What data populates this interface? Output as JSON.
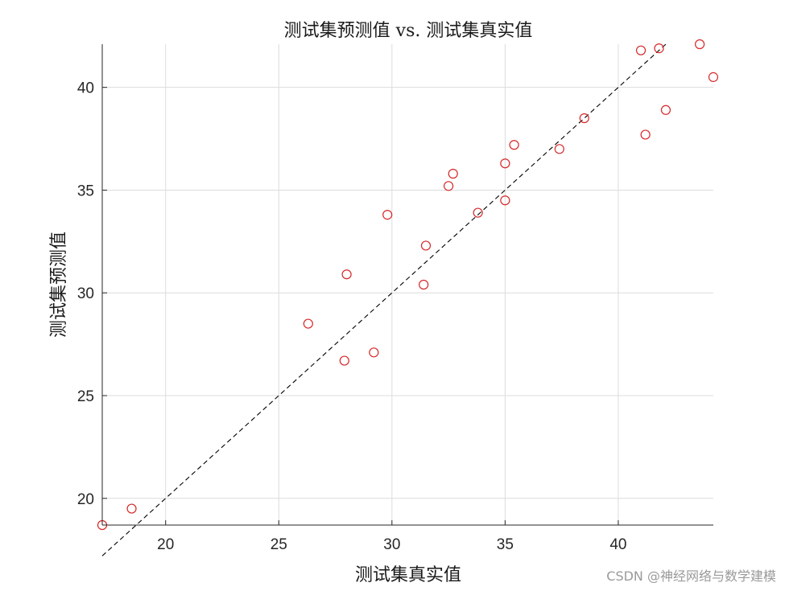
{
  "chart_data": {
    "type": "scatter",
    "title": "测试集预测值 vs. 测试集真实值",
    "xlabel": "测试集真实值",
    "ylabel": "测试集预测值",
    "xlim": [
      17.2,
      44.2
    ],
    "ylim": [
      18.7,
      42.1
    ],
    "xticks": [
      20,
      25,
      30,
      35,
      40
    ],
    "yticks": [
      20,
      25,
      30,
      35,
      40
    ],
    "grid": true,
    "marker": "open-circle",
    "marker_color": "#d62728",
    "reference_line": {
      "style": "dashed",
      "color": "#000000",
      "points": [
        [
          17.2,
          17.2
        ],
        [
          42.1,
          42.1
        ]
      ]
    },
    "points": [
      {
        "x": 17.2,
        "y": 18.7
      },
      {
        "x": 18.5,
        "y": 19.5
      },
      {
        "x": 26.3,
        "y": 28.5
      },
      {
        "x": 27.9,
        "y": 26.7
      },
      {
        "x": 28.0,
        "y": 30.9
      },
      {
        "x": 29.2,
        "y": 27.1
      },
      {
        "x": 29.8,
        "y": 33.8
      },
      {
        "x": 31.4,
        "y": 30.4
      },
      {
        "x": 31.5,
        "y": 32.3
      },
      {
        "x": 32.5,
        "y": 35.2
      },
      {
        "x": 32.7,
        "y": 35.8
      },
      {
        "x": 33.8,
        "y": 33.9
      },
      {
        "x": 35.0,
        "y": 34.5
      },
      {
        "x": 35.0,
        "y": 36.3
      },
      {
        "x": 35.4,
        "y": 37.2
      },
      {
        "x": 37.4,
        "y": 37.0
      },
      {
        "x": 38.5,
        "y": 38.5
      },
      {
        "x": 41.0,
        "y": 41.8
      },
      {
        "x": 41.2,
        "y": 37.7
      },
      {
        "x": 41.8,
        "y": 41.9
      },
      {
        "x": 42.1,
        "y": 38.9
      },
      {
        "x": 43.6,
        "y": 42.1
      },
      {
        "x": 44.2,
        "y": 40.5
      }
    ]
  },
  "watermark": "CSDN @神经网络与数学建模"
}
